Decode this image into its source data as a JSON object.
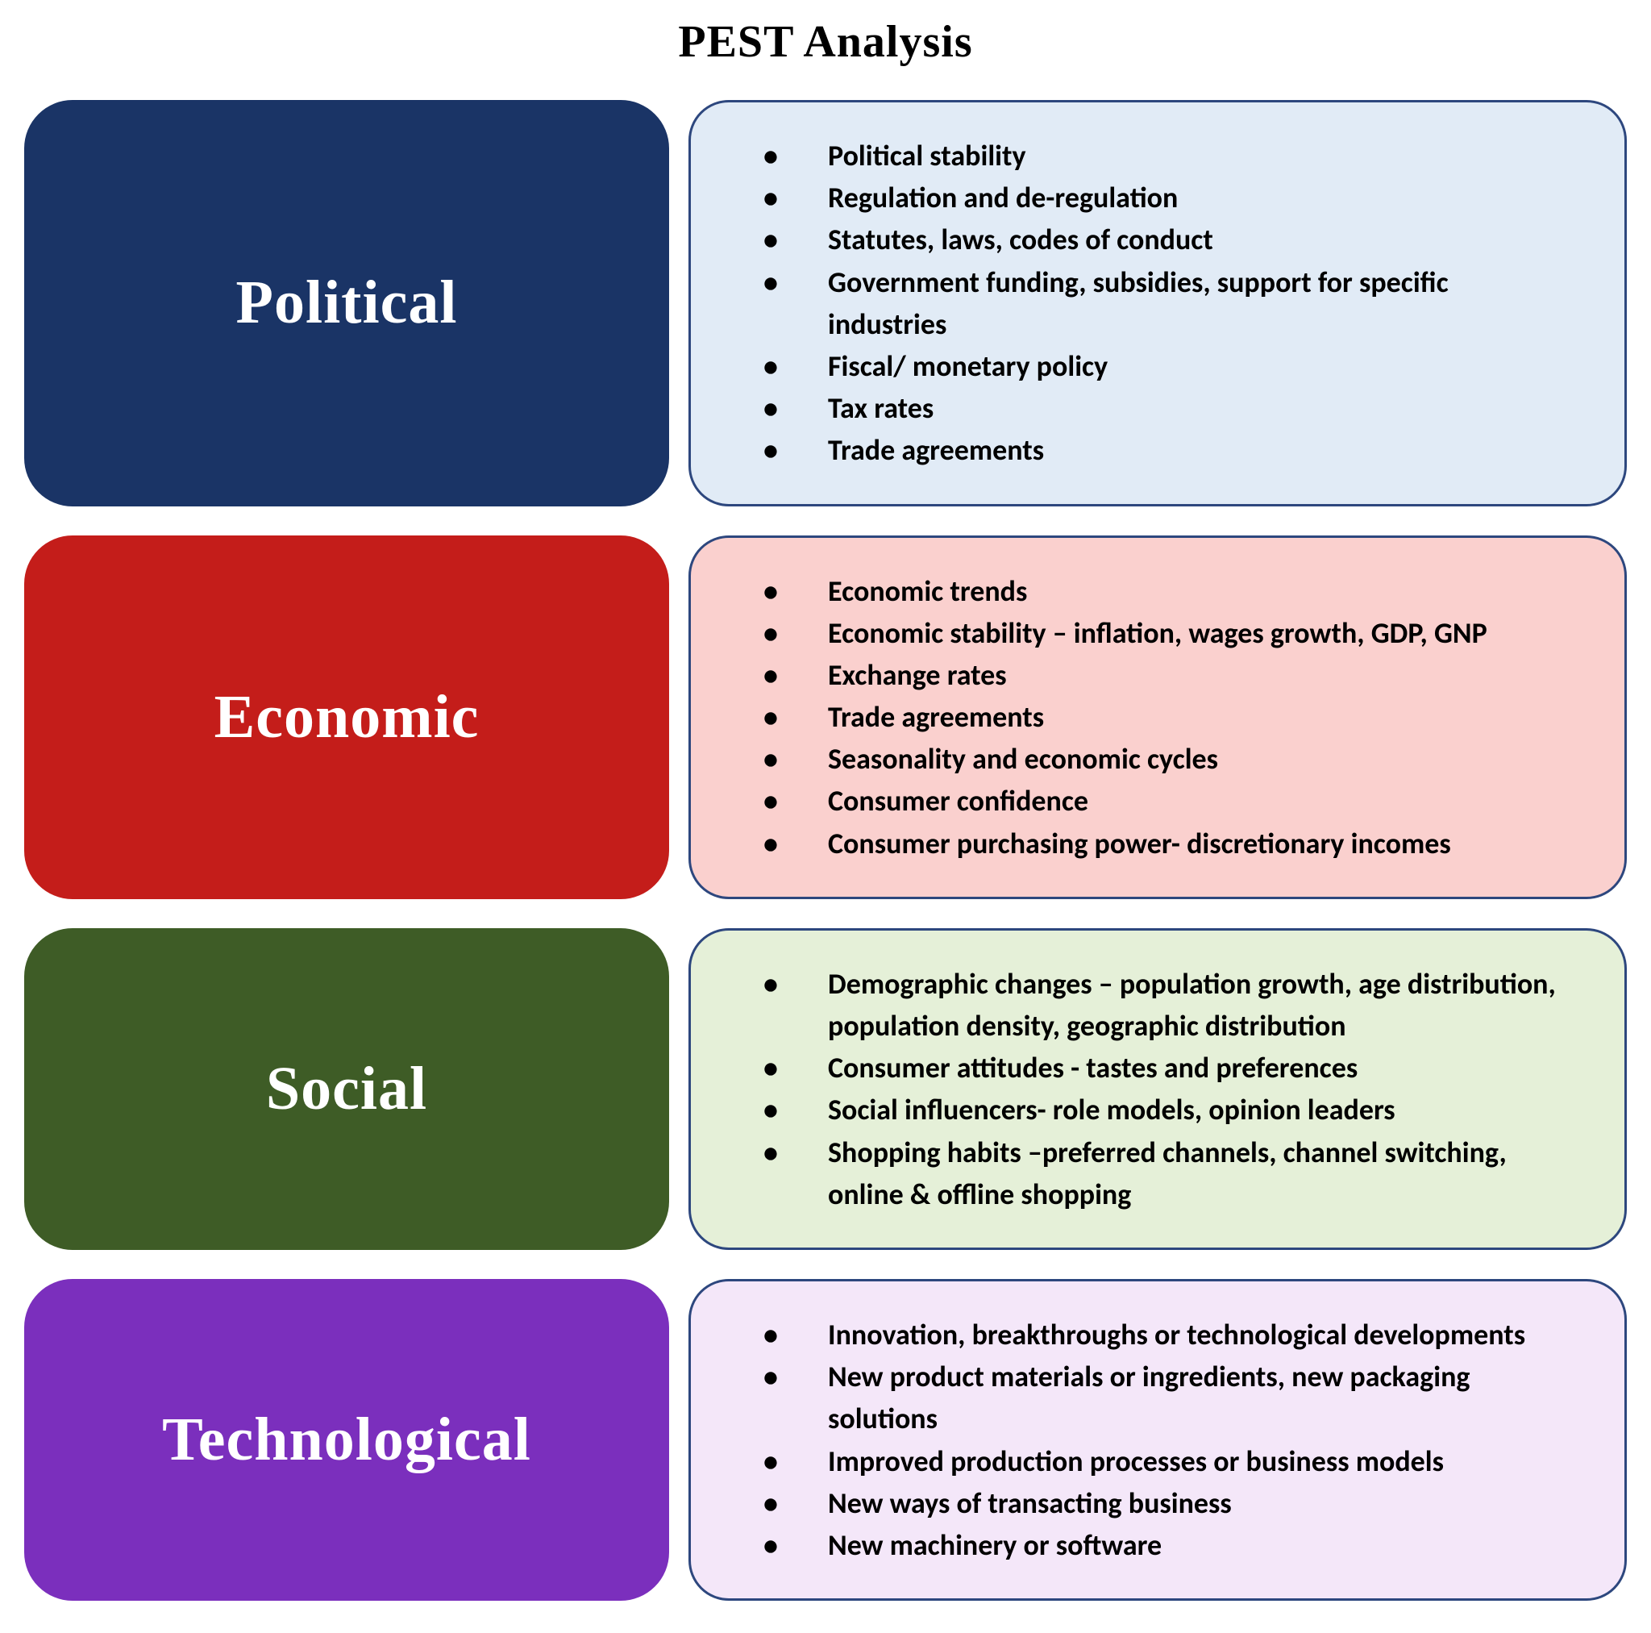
{
  "title": "PEST Analysis",
  "title_fontsize": 56,
  "title_color": "#000000",
  "background_color": "#ffffff",
  "label_font_family": "Bodoni MT, Bodoni 72, Didot, Times New Roman, serif",
  "label_font_size": 76,
  "label_text_color": "#ffffff",
  "detail_font_family": "Calibri, Arial, sans-serif",
  "detail_font_size": 36,
  "detail_font_weight": 700,
  "detail_text_color": "#000000",
  "border_radius_label": 60,
  "border_radius_detail": 50,
  "row_gap": 36,
  "categories": [
    {
      "label": "Political",
      "label_bg": "#1a3466",
      "detail_bg": "#e1ebf6",
      "detail_border": "#2d477e",
      "items": [
        "Political stability",
        "Regulation and de-regulation",
        "Statutes, laws, codes of conduct",
        "Government funding, subsidies, support for specific industries",
        "Fiscal/ monetary policy",
        "Tax rates",
        "Trade agreements"
      ]
    },
    {
      "label": "Economic",
      "label_bg": "#c41d1a",
      "detail_bg": "#fad0ce",
      "detail_border": "#2d477e",
      "items": [
        "Economic trends",
        "Economic stability – inflation, wages growth, GDP, GNP",
        "Exchange rates",
        "Trade agreements",
        "Seasonality and economic cycles",
        "Consumer confidence",
        "Consumer purchasing power- discretionary incomes"
      ]
    },
    {
      "label": "Social",
      "label_bg": "#3e5c26",
      "detail_bg": "#e5f0d8",
      "detail_border": "#2d477e",
      "items": [
        "Demographic changes – population growth, age distribution, population density, geographic distribution",
        "Consumer attitudes - tastes and preferences",
        "Social influencers- role models, opinion leaders",
        "Shopping habits –preferred channels, channel switching, online & offline shopping"
      ]
    },
    {
      "label": "Technological",
      "label_bg": "#7b2fbd",
      "detail_bg": "#f4e7f9",
      "detail_border": "#2d477e",
      "items": [
        "Innovation, breakthroughs or technological developments",
        "New product materials or ingredients, new packaging solutions",
        "Improved production processes or business models",
        "New ways of transacting business",
        "New machinery or software"
      ]
    }
  ]
}
